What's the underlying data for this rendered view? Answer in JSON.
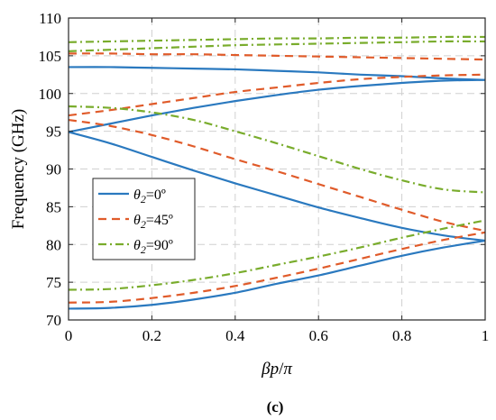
{
  "chart_data": {
    "type": "line",
    "xlabel_parts": [
      "βp",
      "/",
      "π"
    ],
    "ylabel": "Frequency (GHz)",
    "xlim": [
      0,
      1
    ],
    "ylim": [
      70,
      110
    ],
    "xticks": [
      0,
      0.2,
      0.4,
      0.6,
      0.8,
      1
    ],
    "xtick_labels": [
      "0",
      "0.2",
      "0.4",
      "0.6",
      "0.8",
      "1"
    ],
    "yticks": [
      70,
      75,
      80,
      85,
      90,
      95,
      100,
      105,
      110
    ],
    "ytick_labels": [
      "70",
      "75",
      "80",
      "85",
      "90",
      "95",
      "100",
      "105",
      "110"
    ],
    "grid": true,
    "legend_position": "middle-left",
    "caption": "(c)",
    "colors": {
      "theta0": "#2a79bf",
      "theta45": "#e05b2a",
      "theta90": "#79ac2c"
    },
    "x": [
      0,
      0.1,
      0.2,
      0.3,
      0.4,
      0.5,
      0.6,
      0.7,
      0.8,
      0.9,
      1.0
    ],
    "series": [
      {
        "name": "θ2=0º",
        "legend_parts": [
          "θ",
          "2",
          "=0º"
        ],
        "color": "#2a79bf",
        "dash": "solid",
        "lines": [
          [
            71.5,
            71.6,
            72.0,
            72.7,
            73.6,
            74.8,
            75.9,
            77.2,
            78.5,
            79.6,
            80.5
          ],
          [
            94.9,
            93.4,
            91.6,
            89.8,
            88.1,
            86.5,
            84.9,
            83.5,
            82.2,
            81.2,
            80.5
          ],
          [
            94.9,
            96.0,
            97.1,
            98.1,
            99.0,
            99.8,
            100.5,
            101.0,
            101.4,
            101.7,
            101.8
          ],
          [
            103.5,
            103.5,
            103.4,
            103.3,
            103.2,
            103.0,
            102.8,
            102.5,
            102.3,
            102.0,
            101.8
          ]
        ]
      },
      {
        "name": "θ2=45º",
        "legend_parts": [
          "θ",
          "2",
          "=45º"
        ],
        "color": "#e05b2a",
        "dash": "dashed",
        "lines": [
          [
            72.3,
            72.4,
            72.9,
            73.6,
            74.5,
            75.6,
            76.8,
            78.1,
            79.4,
            80.6,
            81.6
          ],
          [
            96.5,
            95.7,
            94.5,
            93.0,
            91.3,
            89.7,
            88.0,
            86.3,
            84.6,
            83.0,
            81.8
          ],
          [
            97.1,
            97.8,
            98.6,
            99.4,
            100.2,
            100.8,
            101.4,
            101.9,
            102.2,
            102.4,
            102.5
          ],
          [
            105.3,
            105.3,
            105.2,
            105.2,
            105.1,
            105.0,
            104.9,
            104.8,
            104.7,
            104.6,
            104.5
          ]
        ]
      },
      {
        "name": "θ2=90º",
        "legend_parts": [
          "θ",
          "2",
          "=90º"
        ],
        "color": "#79ac2c",
        "dash": "dashdot",
        "lines": [
          [
            74.0,
            74.1,
            74.6,
            75.3,
            76.2,
            77.3,
            78.4,
            79.6,
            80.9,
            82.1,
            83.2
          ],
          [
            98.3,
            98.1,
            97.5,
            96.5,
            95.0,
            93.4,
            91.7,
            90.0,
            88.5,
            87.3,
            86.9
          ],
          [
            105.6,
            105.8,
            106.0,
            106.2,
            106.4,
            106.5,
            106.6,
            106.7,
            106.8,
            106.9,
            106.9
          ],
          [
            106.8,
            106.9,
            107.0,
            107.1,
            107.2,
            107.3,
            107.3,
            107.4,
            107.4,
            107.5,
            107.5
          ]
        ]
      }
    ]
  }
}
